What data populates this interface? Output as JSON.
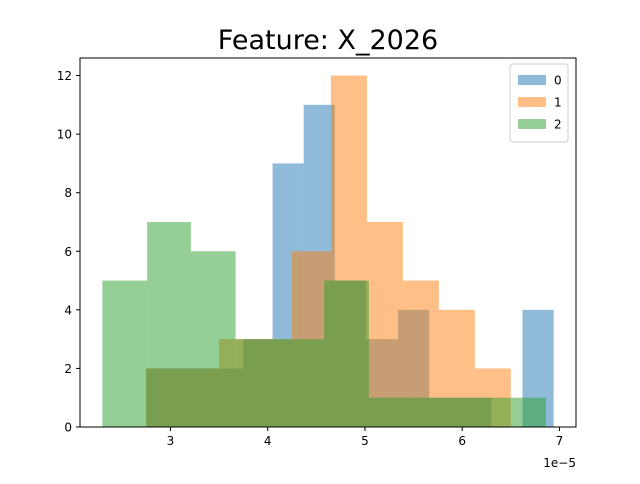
{
  "chart_data": {
    "type": "histogram",
    "title": "Feature: X_2026",
    "xlabel": "",
    "ylabel": "",
    "offset_text": "1e−5",
    "x_scale_factor": 1e-05,
    "xlim": [
      2.07,
      7.17
    ],
    "ylim": [
      0,
      12.6
    ],
    "x_ticks": [
      3,
      4,
      5,
      6,
      7
    ],
    "y_ticks": [
      0,
      2,
      4,
      6,
      8,
      10,
      12
    ],
    "grid": false,
    "legend_position": "upper right",
    "series": [
      {
        "name": "0",
        "color": "#1f77b4",
        "bins": [
          {
            "x0": 2.75,
            "x1": 3.2,
            "count": 2
          },
          {
            "x0": 3.2,
            "x1": 3.75,
            "count": 2
          },
          {
            "x0": 3.75,
            "x1": 4.05,
            "count": 3
          },
          {
            "x0": 4.05,
            "x1": 4.37,
            "count": 9
          },
          {
            "x0": 4.37,
            "x1": 4.69,
            "count": 11
          },
          {
            "x0": 4.69,
            "x1": 5.01,
            "count": 5
          },
          {
            "x0": 5.01,
            "x1": 5.34,
            "count": 3
          },
          {
            "x0": 5.34,
            "x1": 5.66,
            "count": 4
          },
          {
            "x0": 5.66,
            "x1": 5.98,
            "count": 1
          },
          {
            "x0": 5.98,
            "x1": 6.3,
            "count": 1
          },
          {
            "x0": 6.3,
            "x1": 6.62,
            "count": 0
          },
          {
            "x0": 6.62,
            "x1": 6.94,
            "count": 4
          }
        ]
      },
      {
        "name": "1",
        "color": "#ff7f0e",
        "bins": [
          {
            "x0": 2.75,
            "x1": 3.12,
            "count": 2
          },
          {
            "x0": 3.12,
            "x1": 3.5,
            "count": 2
          },
          {
            "x0": 3.5,
            "x1": 3.75,
            "count": 3
          },
          {
            "x0": 3.75,
            "x1": 4.25,
            "count": 3
          },
          {
            "x0": 4.25,
            "x1": 4.65,
            "count": 6
          },
          {
            "x0": 4.65,
            "x1": 5.02,
            "count": 12
          },
          {
            "x0": 5.02,
            "x1": 5.39,
            "count": 7
          },
          {
            "x0": 5.39,
            "x1": 5.76,
            "count": 5
          },
          {
            "x0": 5.76,
            "x1": 6.13,
            "count": 4
          },
          {
            "x0": 6.13,
            "x1": 6.5,
            "count": 2
          }
        ]
      },
      {
        "name": "2",
        "color": "#2ca02c",
        "bins": [
          {
            "x0": 2.3,
            "x1": 2.76,
            "count": 5
          },
          {
            "x0": 2.76,
            "x1": 3.21,
            "count": 7
          },
          {
            "x0": 3.21,
            "x1": 3.67,
            "count": 6
          },
          {
            "x0": 3.67,
            "x1": 4.12,
            "count": 3
          },
          {
            "x0": 4.12,
            "x1": 4.58,
            "count": 3
          },
          {
            "x0": 4.58,
            "x1": 5.04,
            "count": 5
          },
          {
            "x0": 5.04,
            "x1": 5.49,
            "count": 1
          },
          {
            "x0": 5.49,
            "x1": 5.95,
            "count": 1
          },
          {
            "x0": 5.95,
            "x1": 6.4,
            "count": 1
          },
          {
            "x0": 6.4,
            "x1": 6.86,
            "count": 1
          }
        ]
      }
    ]
  }
}
